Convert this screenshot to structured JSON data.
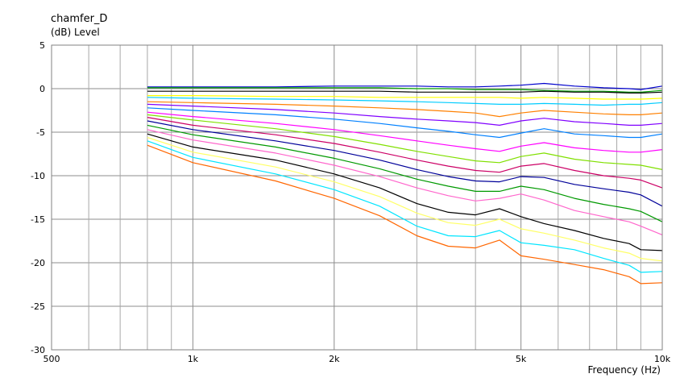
{
  "chart_data": {
    "type": "line",
    "title": "chamfer_D",
    "ylabel": "(dB)  Level",
    "xlabel": "Frequency  (Hz)",
    "x_scale": "log",
    "xlim": [
      500,
      10000
    ],
    "ylim": [
      -30,
      5
    ],
    "grid": true,
    "y_ticks": [
      5,
      0,
      -5,
      -10,
      -15,
      -20,
      -25,
      -30
    ],
    "y_tick_labels": [
      "5",
      "0",
      "-5",
      "-10",
      "-15",
      "-20",
      "-25",
      "-30"
    ],
    "x_ticks": [
      500,
      1000,
      2000,
      5000,
      10000
    ],
    "x_tick_labels": [
      "500",
      "1k",
      "2k",
      "5k",
      "10k"
    ],
    "x_minor": [
      600,
      700,
      800,
      900,
      3000,
      4000,
      6000,
      7000,
      8000,
      9000
    ],
    "x": [
      800,
      1000,
      1500,
      2000,
      2500,
      3000,
      3500,
      4000,
      4500,
      5000,
      5600,
      6500,
      7500,
      8500,
      9000,
      10000
    ],
    "series": [
      {
        "color": "#0000cc",
        "values": [
          0.2,
          0.2,
          0.2,
          0.3,
          0.3,
          0.3,
          0.2,
          0.2,
          0.3,
          0.4,
          0.6,
          0.3,
          0.1,
          0.0,
          -0.1,
          0.3
        ]
      },
      {
        "color": "#00a000",
        "values": [
          0.1,
          0.1,
          0.1,
          0.1,
          0.1,
          0.0,
          0.0,
          -0.1,
          -0.1,
          -0.1,
          -0.2,
          -0.3,
          -0.3,
          -0.4,
          -0.4,
          -0.2
        ]
      },
      {
        "color": "#000000",
        "values": [
          -0.3,
          -0.3,
          -0.3,
          -0.3,
          -0.3,
          -0.4,
          -0.4,
          -0.4,
          -0.4,
          -0.4,
          -0.3,
          -0.4,
          -0.4,
          -0.5,
          -0.5,
          -0.4
        ]
      },
      {
        "color": "#ffff00",
        "values": [
          -0.8,
          -0.8,
          -0.9,
          -0.9,
          -1.0,
          -1.0,
          -1.0,
          -1.0,
          -1.0,
          -1.1,
          -1.0,
          -1.1,
          -1.2,
          -1.2,
          -1.2,
          -1.1
        ]
      },
      {
        "color": "#00ccff",
        "values": [
          -1.0,
          -1.1,
          -1.2,
          -1.3,
          -1.4,
          -1.5,
          -1.6,
          -1.7,
          -1.8,
          -1.8,
          -1.7,
          -1.8,
          -1.9,
          -1.8,
          -1.8,
          -1.6
        ]
      },
      {
        "color": "#ff8000",
        "values": [
          -1.5,
          -1.6,
          -1.8,
          -2.0,
          -2.2,
          -2.4,
          -2.6,
          -2.8,
          -3.2,
          -2.8,
          -2.5,
          -2.7,
          -2.9,
          -3.0,
          -3.0,
          -2.8
        ]
      },
      {
        "color": "#8000ff",
        "values": [
          -1.8,
          -2.0,
          -2.4,
          -2.8,
          -3.2,
          -3.5,
          -3.7,
          -3.9,
          -4.2,
          -3.7,
          -3.4,
          -3.8,
          -4.0,
          -4.2,
          -4.2,
          -4.0
        ]
      },
      {
        "color": "#0080ff",
        "values": [
          -2.2,
          -2.5,
          -3.0,
          -3.5,
          -4.0,
          -4.5,
          -4.9,
          -5.3,
          -5.6,
          -5.1,
          -4.6,
          -5.2,
          -5.4,
          -5.6,
          -5.6,
          -5.2
        ]
      },
      {
        "color": "#ff00ff",
        "values": [
          -2.7,
          -3.2,
          -4.0,
          -4.7,
          -5.4,
          -6.0,
          -6.5,
          -6.9,
          -7.2,
          -6.6,
          -6.2,
          -6.8,
          -7.1,
          -7.3,
          -7.3,
          -7.0
        ]
      },
      {
        "color": "#80e000",
        "values": [
          -3.0,
          -3.6,
          -4.6,
          -5.5,
          -6.4,
          -7.2,
          -7.8,
          -8.3,
          -8.5,
          -7.8,
          -7.4,
          -8.1,
          -8.5,
          -8.7,
          -8.8,
          -9.3
        ]
      },
      {
        "color": "#cc0066",
        "values": [
          -3.3,
          -4.2,
          -5.3,
          -6.3,
          -7.3,
          -8.2,
          -8.9,
          -9.4,
          -9.6,
          -8.9,
          -8.6,
          -9.4,
          -10.0,
          -10.3,
          -10.5,
          -11.4
        ]
      },
      {
        "color": "#000099",
        "values": [
          -3.7,
          -4.7,
          -6.0,
          -7.1,
          -8.2,
          -9.3,
          -10.1,
          -10.6,
          -10.7,
          -10.1,
          -10.2,
          -11.0,
          -11.5,
          -11.9,
          -12.2,
          -13.5
        ]
      },
      {
        "color": "#009900",
        "values": [
          -4.2,
          -5.3,
          -6.7,
          -8.0,
          -9.2,
          -10.4,
          -11.2,
          -11.8,
          -11.8,
          -11.2,
          -11.6,
          -12.6,
          -13.3,
          -13.8,
          -14.1,
          -15.3
        ]
      },
      {
        "color": "#ff66cc",
        "values": [
          -4.7,
          -5.9,
          -7.4,
          -8.8,
          -10.1,
          -11.4,
          -12.3,
          -12.9,
          -12.6,
          -12.1,
          -12.8,
          -14.0,
          -14.7,
          -15.3,
          -15.8,
          -16.8
        ]
      },
      {
        "color": "#000000",
        "values": [
          -5.2,
          -6.7,
          -8.2,
          -9.8,
          -11.4,
          -13.2,
          -14.2,
          -14.5,
          -13.8,
          -14.7,
          -15.5,
          -16.3,
          -17.2,
          -17.8,
          -18.5,
          -18.6
        ]
      },
      {
        "color": "#ffff66",
        "values": [
          -5.6,
          -7.3,
          -9.0,
          -10.7,
          -12.4,
          -14.3,
          -15.4,
          -15.7,
          -15.0,
          -16.1,
          -16.6,
          -17.4,
          -18.3,
          -18.9,
          -19.5,
          -19.8
        ]
      },
      {
        "color": "#00e5ff",
        "values": [
          -6.0,
          -7.9,
          -9.8,
          -11.6,
          -13.5,
          -15.8,
          -16.9,
          -17.0,
          -16.3,
          -17.7,
          -18.0,
          -18.5,
          -19.5,
          -20.3,
          -21.1,
          -21.0
        ]
      },
      {
        "color": "#ff6600",
        "values": [
          -6.5,
          -8.5,
          -10.6,
          -12.6,
          -14.6,
          -16.9,
          -18.1,
          -18.3,
          -17.4,
          -19.2,
          -19.6,
          -20.2,
          -20.8,
          -21.6,
          -22.4,
          -22.3
        ]
      }
    ]
  }
}
